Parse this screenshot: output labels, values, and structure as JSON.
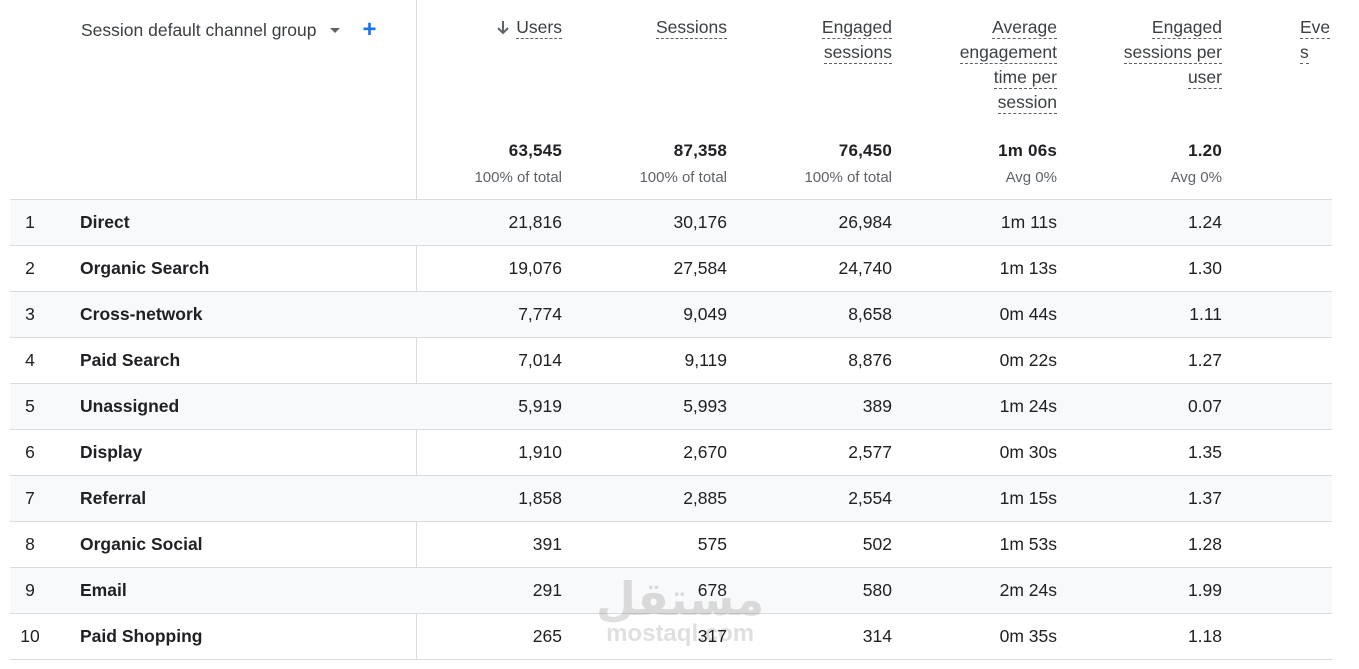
{
  "dimension": {
    "label": "Session default channel group"
  },
  "columns": [
    {
      "key": "users",
      "label_lines": [
        "Users"
      ],
      "sorted": true,
      "total": "63,545",
      "total_sub": "100% of total"
    },
    {
      "key": "sessions",
      "label_lines": [
        "Sessions"
      ],
      "sorted": false,
      "total": "87,358",
      "total_sub": "100% of total"
    },
    {
      "key": "engaged_sessions",
      "label_lines": [
        "Engaged",
        "sessions"
      ],
      "sorted": false,
      "total": "76,450",
      "total_sub": "100% of total"
    },
    {
      "key": "avg_engagement",
      "label_lines": [
        "Average",
        "engagement",
        "time per",
        "session"
      ],
      "sorted": false,
      "total": "1m 06s",
      "total_sub": "Avg 0%"
    },
    {
      "key": "engaged_per_user",
      "label_lines": [
        "Engaged",
        "sessions per",
        "user"
      ],
      "sorted": false,
      "total": "1.20",
      "total_sub": "Avg 0%"
    },
    {
      "key": "events_partial",
      "label_lines": [
        "Eve",
        "s"
      ],
      "sorted": false,
      "total": "",
      "total_sub": ""
    }
  ],
  "rows": [
    {
      "index": "1",
      "channel": "Direct",
      "values": [
        "21,816",
        "30,176",
        "26,984",
        "1m 11s",
        "1.24"
      ]
    },
    {
      "index": "2",
      "channel": "Organic Search",
      "values": [
        "19,076",
        "27,584",
        "24,740",
        "1m 13s",
        "1.30"
      ]
    },
    {
      "index": "3",
      "channel": "Cross-network",
      "values": [
        "7,774",
        "9,049",
        "8,658",
        "0m 44s",
        "1.11"
      ]
    },
    {
      "index": "4",
      "channel": "Paid Search",
      "values": [
        "7,014",
        "9,119",
        "8,876",
        "0m 22s",
        "1.27"
      ]
    },
    {
      "index": "5",
      "channel": "Unassigned",
      "values": [
        "5,919",
        "5,993",
        "389",
        "1m 24s",
        "0.07"
      ]
    },
    {
      "index": "6",
      "channel": "Display",
      "values": [
        "1,910",
        "2,670",
        "2,577",
        "0m 30s",
        "1.35"
      ]
    },
    {
      "index": "7",
      "channel": "Referral",
      "values": [
        "1,858",
        "2,885",
        "2,554",
        "1m 15s",
        "1.37"
      ]
    },
    {
      "index": "8",
      "channel": "Organic Social",
      "values": [
        "391",
        "575",
        "502",
        "1m 53s",
        "1.28"
      ]
    },
    {
      "index": "9",
      "channel": "Email",
      "values": [
        "291",
        "678",
        "580",
        "2m 24s",
        "1.99"
      ]
    },
    {
      "index": "10",
      "channel": "Paid Shopping",
      "values": [
        "265",
        "317",
        "314",
        "0m 35s",
        "1.18"
      ]
    }
  ],
  "icons": {
    "sort": "arrow-down-icon",
    "dropdown": "caret-down-icon",
    "add": "plus-icon"
  },
  "colors": {
    "accent": "#1a73e8",
    "row_alt": "#f8f9fa",
    "divider": "#dadce0"
  },
  "watermark": {
    "arabic": "مستقل",
    "latin": "mostaql.com"
  }
}
